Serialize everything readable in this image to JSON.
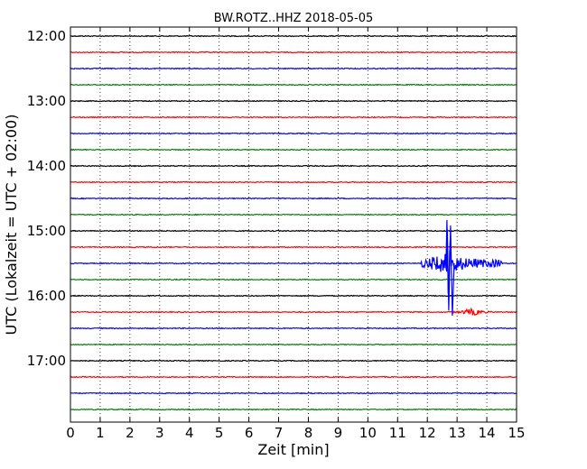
{
  "chart_data": {
    "type": "line",
    "title": "BW.ROTZ..HHZ 2018-05-05",
    "xlabel": "Zeit  [min]",
    "ylabel": "UTC (Lokalzeit = UTC + 02:00)",
    "xlim": [
      0,
      15
    ],
    "x_ticks": [
      "0",
      "1",
      "2",
      "3",
      "4",
      "5",
      "6",
      "7",
      "8",
      "9",
      "10",
      "11",
      "12",
      "13",
      "14",
      "15"
    ],
    "y_tick_labels": [
      "12:00",
      "13:00",
      "14:00",
      "15:00",
      "16:00",
      "17:00"
    ],
    "grid": "vertical dotted lines at each minute",
    "trace_interval_minutes": 15,
    "trace_colors": [
      "#000000",
      "#ff0000",
      "#0000ff",
      "#008000"
    ],
    "traces": [
      {
        "start": "12:00",
        "color": "#000000",
        "activity": "noise"
      },
      {
        "start": "12:15",
        "color": "#ff0000",
        "activity": "noise"
      },
      {
        "start": "12:30",
        "color": "#0000ff",
        "activity": "noise"
      },
      {
        "start": "12:45",
        "color": "#008000",
        "activity": "noise"
      },
      {
        "start": "13:00",
        "color": "#000000",
        "activity": "noise"
      },
      {
        "start": "13:15",
        "color": "#ff0000",
        "activity": "noise"
      },
      {
        "start": "13:30",
        "color": "#0000ff",
        "activity": "noise"
      },
      {
        "start": "13:45",
        "color": "#008000",
        "activity": "noise"
      },
      {
        "start": "14:00",
        "color": "#000000",
        "activity": "noise"
      },
      {
        "start": "14:15",
        "color": "#ff0000",
        "activity": "noise"
      },
      {
        "start": "14:30",
        "color": "#0000ff",
        "activity": "noise"
      },
      {
        "start": "14:45",
        "color": "#008000",
        "activity": "noise"
      },
      {
        "start": "15:00",
        "color": "#000000",
        "activity": "noise"
      },
      {
        "start": "15:15",
        "color": "#ff0000",
        "activity": "noise"
      },
      {
        "start": "15:30",
        "color": "#0000ff",
        "activity": "event",
        "event_start_min": 11.8,
        "event_peak_min": 12.75,
        "event_end_min": 14.5
      },
      {
        "start": "15:45",
        "color": "#008000",
        "activity": "noise"
      },
      {
        "start": "16:00",
        "color": "#000000",
        "activity": "noise"
      },
      {
        "start": "16:15",
        "color": "#ff0000",
        "activity": "event",
        "event_start_min": 12.7,
        "event_peak_min": 13.5,
        "event_end_min": 14.2
      },
      {
        "start": "16:30",
        "color": "#0000ff",
        "activity": "noise"
      },
      {
        "start": "16:45",
        "color": "#008000",
        "activity": "noise"
      },
      {
        "start": "17:00",
        "color": "#000000",
        "activity": "noise"
      },
      {
        "start": "17:15",
        "color": "#ff0000",
        "activity": "noise"
      },
      {
        "start": "17:30",
        "color": "#0000ff",
        "activity": "noise"
      },
      {
        "start": "17:45",
        "color": "#008000",
        "activity": "noise"
      }
    ]
  }
}
